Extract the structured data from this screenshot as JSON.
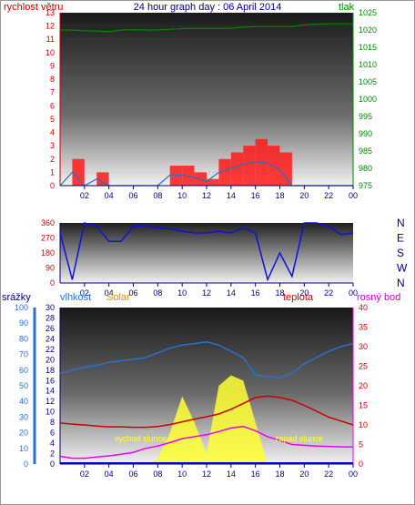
{
  "header": {
    "title": "24 hour graph day : 06 April 2014",
    "left_label": "rychlost větru",
    "right_label": "tlak"
  },
  "colors": {
    "wind": "#ff1a1a",
    "wind_avg": "#1e73c8",
    "pressure": "#008800",
    "direction": "#1010e0",
    "humidity": "#2a72d0",
    "solar": "#ffff33",
    "temperature": "#cc0000",
    "dewpoint": "#ee00ee",
    "rain": "#0000cc",
    "axis_left": "#cc0000",
    "axis_right": "#008800",
    "axis_bottom": "#000080"
  },
  "x_ticks": [
    "02",
    "04",
    "06",
    "08",
    "10",
    "12",
    "14",
    "16",
    "18",
    "20",
    "22",
    "00"
  ],
  "panel3": {
    "labels": {
      "rain": "srážky",
      "humidity": "vlhkost",
      "solar": "Solar",
      "temperature": "teplota",
      "dewpoint": "rosný bod"
    },
    "sunrise": "východ slunce",
    "sunset": "západ slunce"
  },
  "chart_data": [
    {
      "type": "line",
      "title": "24 hour graph day : 06 April 2014",
      "x": [
        0,
        1,
        2,
        3,
        4,
        5,
        6,
        7,
        8,
        9,
        10,
        11,
        12,
        13,
        14,
        15,
        16,
        17,
        18,
        19,
        20,
        21,
        22,
        23,
        24
      ],
      "ylabel": "rychlost větru",
      "y2label": "tlak",
      "ylim": [
        0,
        13
      ],
      "y2lim": [
        975,
        1025
      ],
      "yticks": [
        0,
        1,
        2,
        3,
        4,
        5,
        6,
        7,
        8,
        9,
        10,
        11,
        12,
        13
      ],
      "y2ticks": [
        975,
        980,
        985,
        990,
        995,
        1000,
        1005,
        1010,
        1015,
        1020,
        1025
      ],
      "series": [
        {
          "axis": "left",
          "style": "bars",
          "values": [
            0,
            2,
            0,
            1,
            0,
            0,
            0,
            0,
            0,
            1.5,
            1.5,
            1,
            0.5,
            2,
            2.5,
            3,
            3.5,
            3,
            2.5,
            0,
            0,
            0,
            0,
            0,
            0
          ]
        },
        {
          "axis": "left",
          "style": "line",
          "values": [
            0,
            1,
            0,
            0.5,
            0,
            0,
            0,
            0,
            0,
            0.8,
            0.8,
            0.6,
            0.3,
            1,
            1.3,
            1.6,
            1.8,
            1.7,
            1.2,
            0,
            0,
            0,
            0,
            0,
            0
          ]
        },
        {
          "axis": "right",
          "style": "line",
          "values": [
            1020,
            1020,
            1019.8,
            1019.7,
            1019.5,
            1020,
            1020.1,
            1020,
            1020,
            1020.2,
            1020.4,
            1020.5,
            1020.5,
            1020.5,
            1020.5,
            1020.8,
            1021,
            1021,
            1021,
            1021,
            1021.5,
            1021.7,
            1021.8,
            1021.8,
            1021.8
          ]
        }
      ]
    },
    {
      "type": "line",
      "x": [
        0,
        1,
        2,
        3,
        4,
        5,
        6,
        7,
        8,
        9,
        10,
        11,
        12,
        13,
        14,
        15,
        16,
        17,
        18,
        19,
        20,
        21,
        22,
        23,
        24
      ],
      "ylim": [
        0,
        360
      ],
      "yticks": [
        0,
        90,
        180,
        270,
        360
      ],
      "y2labels": [
        "N",
        "W",
        "S",
        "E",
        "N"
      ],
      "series": [
        {
          "values": [
            300,
            20,
            360,
            340,
            250,
            250,
            340,
            340,
            330,
            325,
            310,
            300,
            300,
            310,
            300,
            330,
            300,
            20,
            180,
            40,
            360,
            360,
            340,
            290,
            300
          ]
        }
      ]
    },
    {
      "type": "area",
      "x": [
        0,
        1,
        2,
        3,
        4,
        5,
        6,
        7,
        8,
        9,
        10,
        11,
        12,
        13,
        14,
        15,
        16,
        17,
        18,
        19,
        20,
        21,
        22,
        23,
        24
      ],
      "ylabel_left1": "srážky",
      "ylabel_left2": "vlhkost",
      "ylabel_right": "rosný bod",
      "ylim_rain": [
        0,
        100
      ],
      "ylim_mid": [
        0,
        30
      ],
      "ylim_right": [
        0,
        40
      ],
      "yticks_rain": [
        0,
        10,
        20,
        30,
        40,
        50,
        60,
        70,
        80,
        90,
        100
      ],
      "yticks_mid": [
        0,
        2,
        4,
        6,
        8,
        10,
        12,
        14,
        16,
        18,
        20,
        22,
        24,
        26,
        28,
        30
      ],
      "yticks_right": [
        0,
        5,
        10,
        15,
        20,
        25,
        30,
        35,
        40
      ],
      "series": [
        {
          "name": "vlhkost",
          "axis": "rain",
          "values": [
            58,
            60,
            62,
            63,
            65,
            66,
            67,
            68,
            71,
            74,
            76,
            77,
            78,
            76,
            72,
            68,
            57,
            56,
            55,
            58,
            64,
            68,
            72,
            75,
            77
          ]
        },
        {
          "name": "teplota",
          "axis": "right",
          "values": [
            10.5,
            10.2,
            10,
            9.7,
            9.5,
            9.5,
            9.4,
            9.4,
            9.6,
            10.1,
            10.8,
            11.5,
            12.1,
            12.8,
            14,
            15.5,
            17,
            17.4,
            17,
            16.3,
            15,
            13.5,
            12,
            11,
            10
          ]
        },
        {
          "name": "rosný bod",
          "axis": "right",
          "values": [
            2,
            1.5,
            1.5,
            1.8,
            2.1,
            2.5,
            3,
            4,
            4.6,
            5.5,
            6.5,
            7,
            7.5,
            8.3,
            9.2,
            9.6,
            8.5,
            7,
            6,
            5,
            4.8,
            4.6,
            4.5,
            4.4,
            4.4
          ]
        },
        {
          "name": "Solar",
          "axis": "mid",
          "values": [
            0,
            0,
            0,
            0,
            0,
            0,
            0,
            0,
            1,
            6,
            13,
            8,
            2,
            15,
            17,
            16,
            8,
            0,
            0,
            0,
            0,
            0,
            0,
            0,
            0
          ]
        },
        {
          "name": "srážky",
          "axis": "rain",
          "values": [
            0,
            0,
            0,
            0,
            0,
            0,
            0,
            0,
            0,
            0,
            0,
            0,
            0,
            0,
            0,
            0,
            0,
            0,
            0,
            0,
            0,
            0,
            0,
            0,
            0
          ]
        }
      ]
    }
  ]
}
